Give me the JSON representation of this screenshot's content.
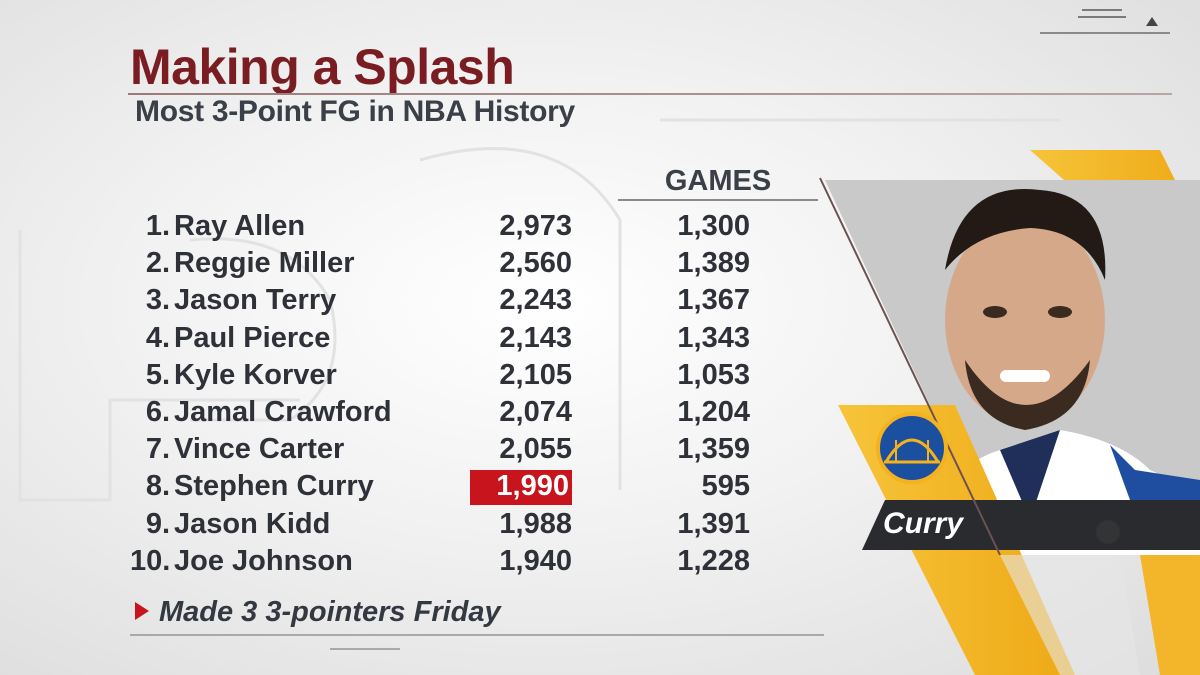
{
  "title": "Making a Splash",
  "subtitle": "Most 3-Point FG in NBA History",
  "columns": {
    "games": "GAMES"
  },
  "leaders": [
    {
      "rank": "1.",
      "name": "Ray Allen",
      "threes": "2,973",
      "games": "1,300"
    },
    {
      "rank": "2.",
      "name": "Reggie Miller",
      "threes": "2,560",
      "games": "1,389"
    },
    {
      "rank": "3.",
      "name": "Jason Terry",
      "threes": "2,243",
      "games": "1,367"
    },
    {
      "rank": "4.",
      "name": "Paul Pierce",
      "threes": "2,143",
      "games": "1,343"
    },
    {
      "rank": "5.",
      "name": "Kyle Korver",
      "threes": "2,105",
      "games": "1,053"
    },
    {
      "rank": "6.",
      "name": "Jamal Crawford",
      "threes": "2,074",
      "games": "1,204"
    },
    {
      "rank": "7.",
      "name": "Vince Carter",
      "threes": "2,055",
      "games": "1,359"
    },
    {
      "rank": "8.",
      "name": "Stephen Curry",
      "threes": "1,990",
      "games": "595",
      "highlight": true
    },
    {
      "rank": "9.",
      "name": "Jason Kidd",
      "threes": "1,988",
      "games": "1,391"
    },
    {
      "rank": "10.",
      "name": "Joe Johnson",
      "threes": "1,940",
      "games": "1,228"
    }
  ],
  "note": "Made 3 3-pointers Friday",
  "player_tag": "Curry",
  "icons": {
    "team_logo": "team-logo-icon",
    "menu": "menu-icon",
    "arrow": "arrow-up-icon"
  },
  "colors": {
    "title": "#7a1d22",
    "highlight": "#c8141c",
    "accent_gold": "#f5b21f",
    "team_blue": "#1b4fa0"
  }
}
